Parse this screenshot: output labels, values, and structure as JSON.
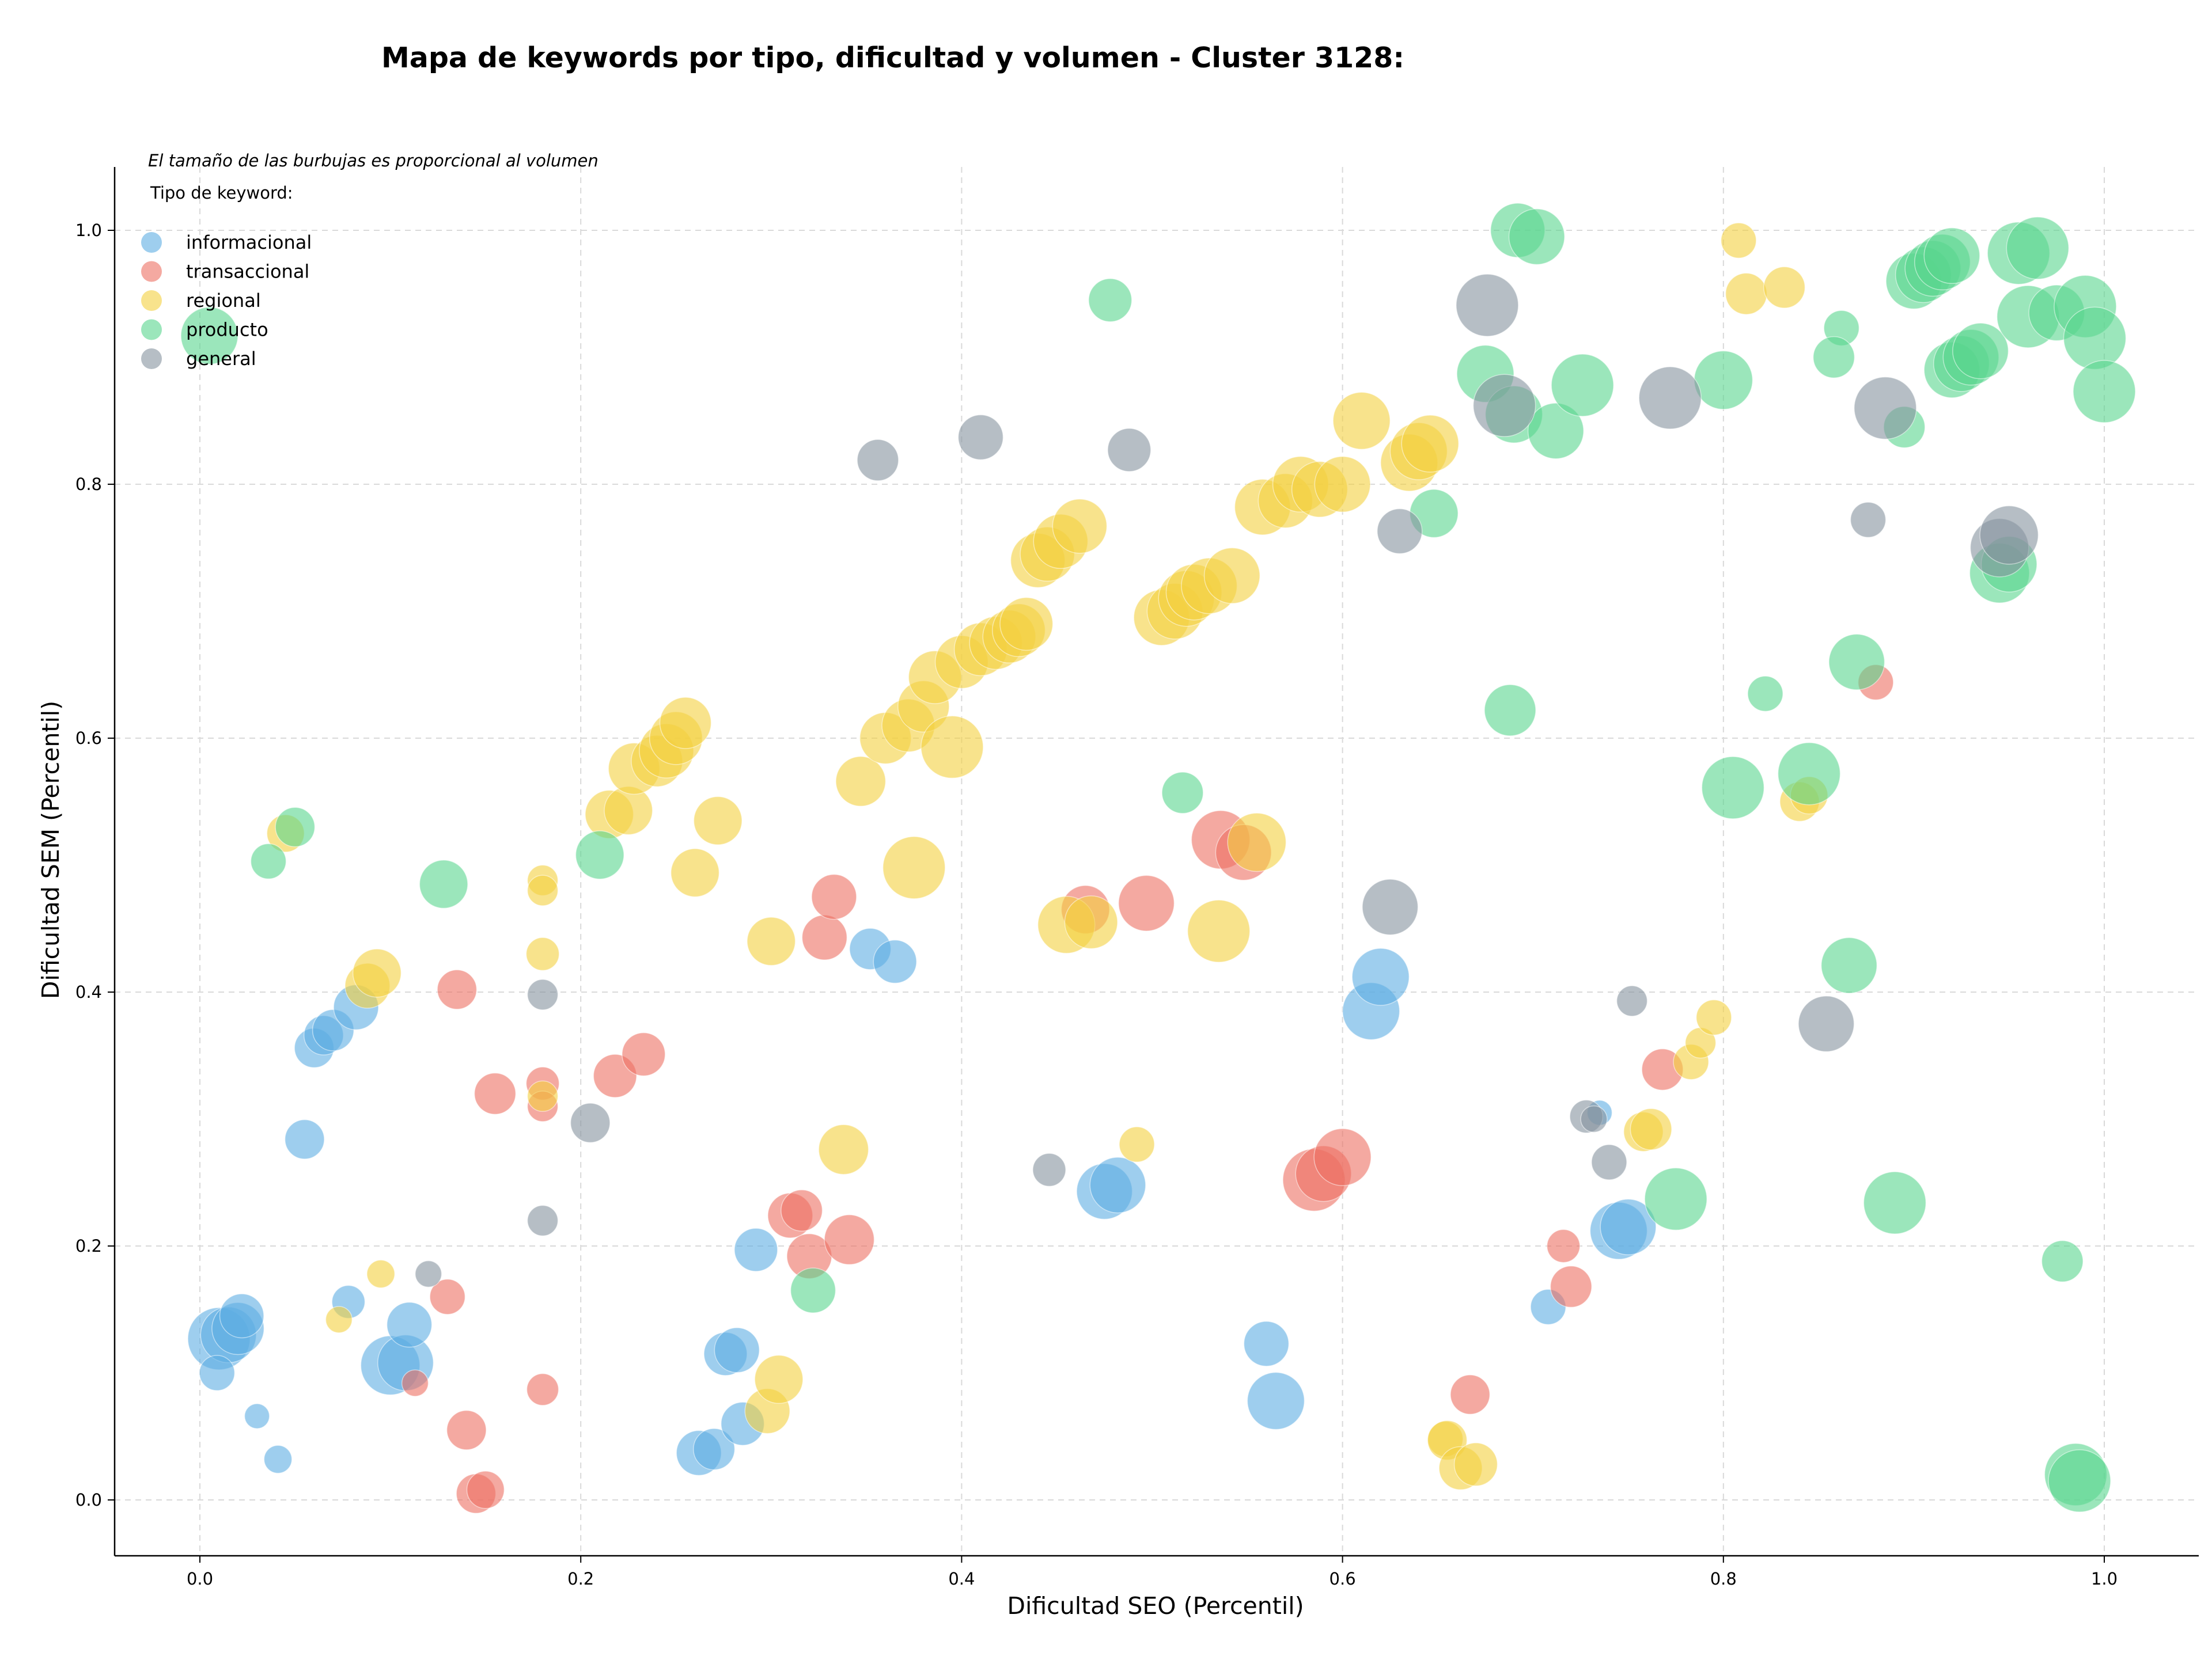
{
  "chart_data": {
    "type": "scatter",
    "title": "Mapa de keywords por tipo, dificultad y volumen - Cluster 3128:",
    "xlabel": "Dificultad SEO (Percentil)",
    "ylabel": "Dificultad SEM (Percentil)",
    "xlim": [
      -0.045,
      1.048
    ],
    "ylim": [
      -0.045,
      1.05
    ],
    "xticks": [
      0.0,
      0.2,
      0.4,
      0.6,
      0.8,
      1.0
    ],
    "yticks": [
      0.0,
      0.2,
      0.4,
      0.6,
      0.8,
      1.0
    ],
    "xtick_labels": [
      "0.0",
      "0.2",
      "0.4",
      "0.6",
      "0.8",
      "1.0"
    ],
    "ytick_labels": [
      "0.0",
      "0.2",
      "0.4",
      "0.6",
      "0.8",
      "1.0"
    ],
    "grid": true,
    "legend_title": "Tipo de keyword:",
    "legend_location": "top-left",
    "note": "El tamaño de las burbujas es proporcional al volumen",
    "series": [
      {
        "name": "informacional",
        "color": "#5DADE2",
        "points": [
          [
            0.01,
            0.127,
            5
          ],
          [
            0.015,
            0.13,
            4
          ],
          [
            0.02,
            0.135,
            3.5
          ],
          [
            0.022,
            0.145,
            2.5
          ],
          [
            0.009,
            0.1,
            1.6
          ],
          [
            0.03,
            0.066,
            0.8
          ],
          [
            0.041,
            0.032,
            1
          ],
          [
            0.055,
            0.284,
            2
          ],
          [
            0.06,
            0.356,
            2
          ],
          [
            0.065,
            0.366,
            2
          ],
          [
            0.07,
            0.37,
            2.2
          ],
          [
            0.082,
            0.388,
            2.6
          ],
          [
            0.078,
            0.156,
            1.4
          ],
          [
            0.1,
            0.106,
            4.5
          ],
          [
            0.108,
            0.108,
            4
          ],
          [
            0.11,
            0.138,
            2.6
          ],
          [
            0.262,
            0.037,
            2.6
          ],
          [
            0.27,
            0.04,
            2.2
          ],
          [
            0.276,
            0.115,
            2.4
          ],
          [
            0.282,
            0.118,
            2.6
          ],
          [
            0.285,
            0.06,
            2.4
          ],
          [
            0.292,
            0.197,
            2.4
          ],
          [
            0.352,
            0.434,
            2.2
          ],
          [
            0.365,
            0.424,
            2.4
          ],
          [
            0.475,
            0.243,
            4
          ],
          [
            0.482,
            0.248,
            4
          ],
          [
            0.56,
            0.123,
            2.6
          ],
          [
            0.565,
            0.078,
            4.2
          ],
          [
            0.615,
            0.385,
            4.2
          ],
          [
            0.62,
            0.412,
            4.2
          ],
          [
            0.708,
            0.152,
            1.6
          ],
          [
            0.745,
            0.212,
            4.2
          ],
          [
            0.75,
            0.215,
            4
          ],
          [
            0.735,
            0.305,
            0.8
          ]
        ]
      },
      {
        "name": "transaccional",
        "color": "#EC7063",
        "points": [
          [
            0.113,
            0.092,
            0.9
          ],
          [
            0.13,
            0.16,
            1.6
          ],
          [
            0.14,
            0.055,
            2
          ],
          [
            0.135,
            0.402,
            2
          ],
          [
            0.145,
            0.005,
            2
          ],
          [
            0.15,
            0.008,
            1.8
          ],
          [
            0.155,
            0.32,
            2.2
          ],
          [
            0.18,
            0.328,
            1.4
          ],
          [
            0.18,
            0.31,
            1.2
          ],
          [
            0.18,
            0.087,
            1.3
          ],
          [
            0.218,
            0.334,
            2.4
          ],
          [
            0.233,
            0.351,
            2.4
          ],
          [
            0.31,
            0.224,
            2.6
          ],
          [
            0.316,
            0.228,
            2.2
          ],
          [
            0.32,
            0.192,
            2.6
          ],
          [
            0.328,
            0.443,
            2.6
          ],
          [
            0.333,
            0.475,
            2.6
          ],
          [
            0.341,
            0.205,
            3.2
          ],
          [
            0.465,
            0.465,
            3
          ],
          [
            0.497,
            0.47,
            4
          ],
          [
            0.536,
            0.52,
            4.4
          ],
          [
            0.548,
            0.51,
            4
          ],
          [
            0.585,
            0.252,
            5
          ],
          [
            0.59,
            0.257,
            4
          ],
          [
            0.6,
            0.27,
            4.2
          ],
          [
            0.667,
            0.083,
            2
          ],
          [
            0.716,
            0.2,
            1.4
          ],
          [
            0.72,
            0.168,
            2.2
          ],
          [
            0.768,
            0.339,
            2.2
          ],
          [
            0.88,
            0.644,
            1.6
          ]
        ]
      },
      {
        "name": "regional",
        "color": "#F4D03F",
        "points": [
          [
            0.045,
            0.525,
            1.8
          ],
          [
            0.073,
            0.142,
            0.9
          ],
          [
            0.095,
            0.178,
            1
          ],
          [
            0.088,
            0.405,
            2.6
          ],
          [
            0.093,
            0.415,
            3
          ],
          [
            0.18,
            0.488,
            1.2
          ],
          [
            0.18,
            0.48,
            1.2
          ],
          [
            0.18,
            0.43,
            1.4
          ],
          [
            0.18,
            0.318,
            1.2
          ],
          [
            0.215,
            0.54,
            3
          ],
          [
            0.225,
            0.543,
            3
          ],
          [
            0.228,
            0.576,
            3.4
          ],
          [
            0.24,
            0.582,
            3.4
          ],
          [
            0.245,
            0.59,
            3.8
          ],
          [
            0.25,
            0.6,
            3.6
          ],
          [
            0.255,
            0.612,
            3.4
          ],
          [
            0.26,
            0.494,
            3
          ],
          [
            0.272,
            0.535,
            3
          ],
          [
            0.298,
            0.07,
            2.6
          ],
          [
            0.304,
            0.095,
            3
          ],
          [
            0.3,
            0.44,
            3
          ],
          [
            0.338,
            0.276,
            3.2
          ],
          [
            0.347,
            0.566,
            3.2
          ],
          [
            0.36,
            0.6,
            3.4
          ],
          [
            0.372,
            0.61,
            3.6
          ],
          [
            0.375,
            0.498,
            5
          ],
          [
            0.38,
            0.625,
            3.4
          ],
          [
            0.386,
            0.648,
            3.6
          ],
          [
            0.395,
            0.593,
            5
          ],
          [
            0.4,
            0.66,
            3.6
          ],
          [
            0.41,
            0.67,
            3.6
          ],
          [
            0.418,
            0.675,
            3.6
          ],
          [
            0.425,
            0.68,
            3.6
          ],
          [
            0.43,
            0.685,
            3.6
          ],
          [
            0.434,
            0.69,
            3.6
          ],
          [
            0.44,
            0.74,
            3.8
          ],
          [
            0.445,
            0.745,
            3.8
          ],
          [
            0.452,
            0.755,
            3.8
          ],
          [
            0.462,
            0.767,
            3.8
          ],
          [
            0.455,
            0.453,
            4.2
          ],
          [
            0.468,
            0.455,
            3.6
          ],
          [
            0.492,
            0.28,
            1.6
          ],
          [
            0.505,
            0.695,
            4
          ],
          [
            0.512,
            0.7,
            4
          ],
          [
            0.518,
            0.71,
            4
          ],
          [
            0.522,
            0.715,
            4
          ],
          [
            0.53,
            0.72,
            4
          ],
          [
            0.542,
            0.728,
            4
          ],
          [
            0.535,
            0.448,
            5
          ],
          [
            0.555,
            0.518,
            4.4
          ],
          [
            0.558,
            0.782,
            4
          ],
          [
            0.57,
            0.787,
            3.8
          ],
          [
            0.578,
            0.8,
            4
          ],
          [
            0.588,
            0.796,
            4
          ],
          [
            0.6,
            0.8,
            4
          ],
          [
            0.61,
            0.85,
            4.2
          ],
          [
            0.635,
            0.817,
            4.2
          ],
          [
            0.64,
            0.826,
            4.2
          ],
          [
            0.646,
            0.832,
            4.2
          ],
          [
            0.654,
            0.048,
            1.6
          ],
          [
            0.655,
            0.047,
            2
          ],
          [
            0.662,
            0.025,
            2.4
          ],
          [
            0.67,
            0.028,
            2.4
          ],
          [
            0.758,
            0.29,
            2
          ],
          [
            0.762,
            0.292,
            2.2
          ],
          [
            0.783,
            0.345,
            1.6
          ],
          [
            0.788,
            0.36,
            1.2
          ],
          [
            0.795,
            0.38,
            1.6
          ],
          [
            0.808,
            0.992,
            1.6
          ],
          [
            0.812,
            0.95,
            2.2
          ],
          [
            0.832,
            0.955,
            2.2
          ],
          [
            0.84,
            0.55,
            2
          ],
          [
            0.845,
            0.555,
            1.8
          ]
        ]
      },
      {
        "name": "producto",
        "color": "#58D68D",
        "points": [
          [
            0.005,
            0.917,
            4.2
          ],
          [
            0.036,
            0.503,
            1.6
          ],
          [
            0.05,
            0.53,
            2
          ],
          [
            0.128,
            0.485,
            3
          ],
          [
            0.21,
            0.508,
            3
          ],
          [
            0.322,
            0.165,
            2.6
          ],
          [
            0.478,
            0.945,
            2.4
          ],
          [
            0.516,
            0.557,
            2.2
          ],
          [
            0.648,
            0.777,
            3
          ],
          [
            0.675,
            0.887,
            4.2
          ],
          [
            0.69,
            0.855,
            4.2
          ],
          [
            0.688,
            0.622,
            3.4
          ],
          [
            0.692,
            1.0,
            3.8
          ],
          [
            0.702,
            0.995,
            4
          ],
          [
            0.712,
            0.842,
            4
          ],
          [
            0.726,
            0.878,
            5
          ],
          [
            0.775,
            0.237,
            5
          ],
          [
            0.8,
            0.882,
            4.4
          ],
          [
            0.805,
            0.561,
            5
          ],
          [
            0.822,
            0.635,
            1.6
          ],
          [
            0.845,
            0.572,
            5
          ],
          [
            0.862,
            0.923,
            1.6
          ],
          [
            0.858,
            0.9,
            2.2
          ],
          [
            0.87,
            0.66,
            4
          ],
          [
            0.866,
            0.421,
            4
          ],
          [
            0.89,
            0.234,
            5
          ],
          [
            0.895,
            0.845,
            2.2
          ],
          [
            0.9,
            0.96,
            4
          ],
          [
            0.905,
            0.965,
            4
          ],
          [
            0.91,
            0.97,
            4
          ],
          [
            0.915,
            0.975,
            4
          ],
          [
            0.92,
            0.98,
            4
          ],
          [
            0.92,
            0.89,
            4
          ],
          [
            0.925,
            0.895,
            4
          ],
          [
            0.93,
            0.9,
            4
          ],
          [
            0.935,
            0.905,
            4
          ],
          [
            0.945,
            0.73,
            4.6
          ],
          [
            0.95,
            0.737,
            4
          ],
          [
            0.955,
            0.982,
            5
          ],
          [
            0.96,
            0.932,
            5
          ],
          [
            0.965,
            0.986,
            5
          ],
          [
            0.975,
            0.935,
            4
          ],
          [
            0.978,
            0.188,
            2.2
          ],
          [
            0.985,
            0.02,
            5
          ],
          [
            0.99,
            0.94,
            5
          ],
          [
            0.995,
            0.915,
            5
          ],
          [
            1.0,
            0.873,
            5
          ],
          [
            0.987,
            0.015,
            5
          ]
        ]
      },
      {
        "name": "general",
        "color": "#85929E",
        "points": [
          [
            0.12,
            0.178,
            0.9
          ],
          [
            0.18,
            0.398,
            1.2
          ],
          [
            0.18,
            0.22,
            1.2
          ],
          [
            0.205,
            0.297,
            2
          ],
          [
            0.356,
            0.819,
            2.2
          ],
          [
            0.41,
            0.837,
            2.6
          ],
          [
            0.446,
            0.26,
            1.4
          ],
          [
            0.488,
            0.827,
            2.4
          ],
          [
            0.625,
            0.467,
            4
          ],
          [
            0.63,
            0.763,
            2.6
          ],
          [
            0.676,
            0.941,
            5
          ],
          [
            0.685,
            0.862,
            5
          ],
          [
            0.728,
            0.302,
            1.4
          ],
          [
            0.732,
            0.3,
            0.9
          ],
          [
            0.74,
            0.266,
            1.6
          ],
          [
            0.752,
            0.393,
            1.2
          ],
          [
            0.772,
            0.868,
            5
          ],
          [
            0.854,
            0.375,
            4
          ],
          [
            0.876,
            0.772,
            1.6
          ],
          [
            0.885,
            0.86,
            5
          ],
          [
            0.945,
            0.75,
            4.4
          ],
          [
            0.95,
            0.76,
            4.4
          ]
        ]
      }
    ]
  }
}
